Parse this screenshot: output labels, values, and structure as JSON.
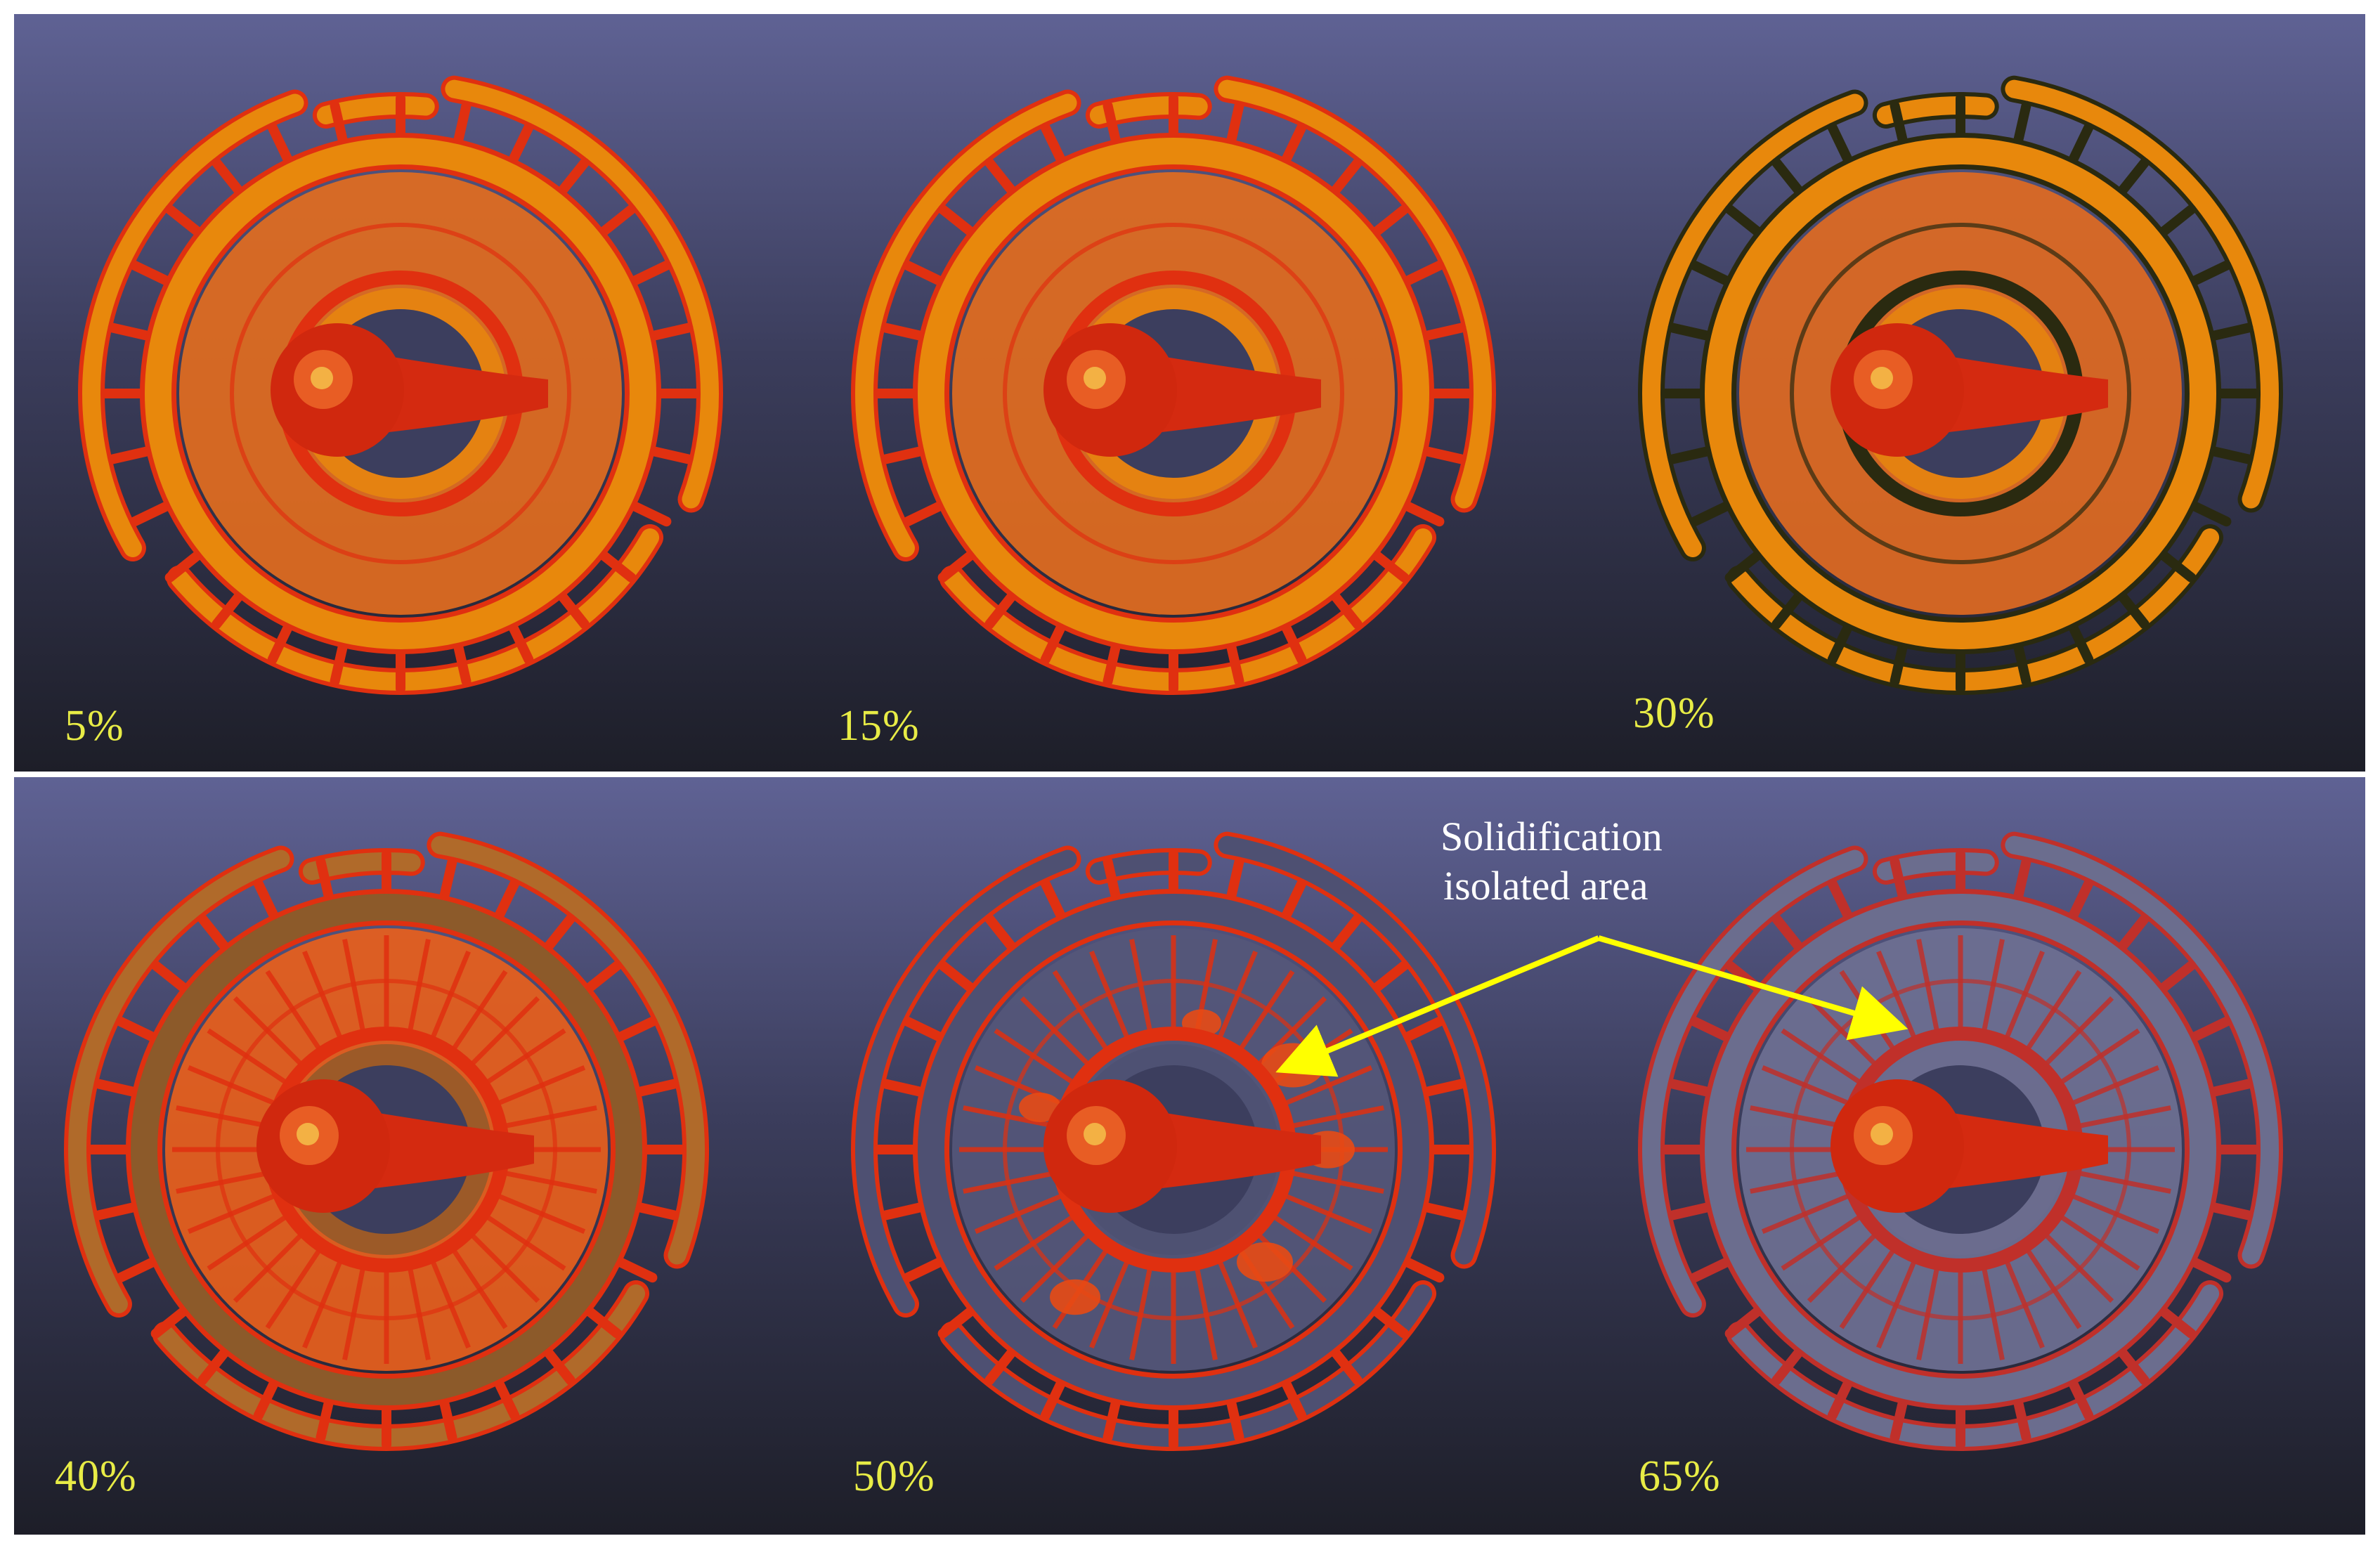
{
  "top_row": {
    "frames": [
      {
        "label": "5%",
        "state": "liquid"
      },
      {
        "label": "15%",
        "state": "liquid"
      },
      {
        "label": "30%",
        "state": "liquid-edge"
      }
    ]
  },
  "bottom_row": {
    "frames": [
      {
        "label": "40%",
        "state": "partial"
      },
      {
        "label": "50%",
        "state": "isolated"
      },
      {
        "label": "65%",
        "state": "solid"
      }
    ]
  },
  "annotation": {
    "line1": "Solidification",
    "line2": "isolated area",
    "color": "#ffff00"
  },
  "colors": {
    "background_top": "#5f6294",
    "background_bottom": "#1d1e28",
    "liquid_orange": "#e8880c",
    "hot_red": "#e03010",
    "solid_gray": "#6b6d8e",
    "label_yellow": "#e8ec46"
  }
}
